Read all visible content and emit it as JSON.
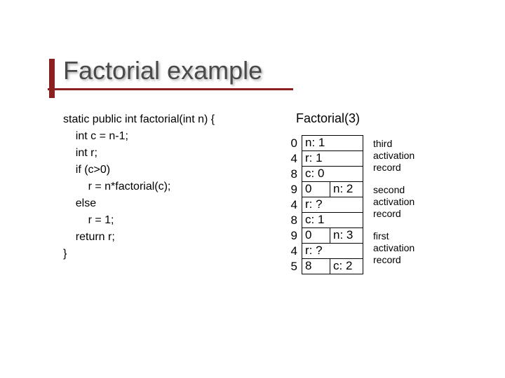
{
  "title": "Factorial example",
  "code": "static public int factorial(int n) {\n    int c = n-1;\n    int r;\n    if (c>0)\n        r = n*factorial(c);\n    else\n        r = 1;\n    return r;\n}",
  "call_label": "Factorial(3)",
  "rows": [
    {
      "addr": "0",
      "type": "single",
      "text": "n: 1"
    },
    {
      "addr": "4",
      "type": "single",
      "text": "r: 1"
    },
    {
      "addr": "8",
      "type": "single",
      "text": "c: 0"
    },
    {
      "addr": "9",
      "type": "split",
      "left": "0",
      "right": "n: 2"
    },
    {
      "addr": "4",
      "type": "single",
      "text": "r: ?"
    },
    {
      "addr": "8",
      "type": "single",
      "text": "c: 1"
    },
    {
      "addr": "9",
      "type": "split",
      "left": "0",
      "right": "n: 3"
    },
    {
      "addr": "4",
      "type": "single",
      "text": "r: ?"
    },
    {
      "addr": "5",
      "type": "split",
      "left": "8",
      "right": "c: 2"
    }
  ],
  "annotations": [
    {
      "l1": "third",
      "l2": "activation",
      "l3": "record"
    },
    {
      "l1": "second",
      "l2": "activation",
      "l3": "record"
    },
    {
      "l1": "first",
      "l2": "activation",
      "l3": "record"
    }
  ],
  "colors": {
    "accent": "#8b2020",
    "title": "#4a4a4a",
    "text": "#000000",
    "bg": "#ffffff"
  }
}
